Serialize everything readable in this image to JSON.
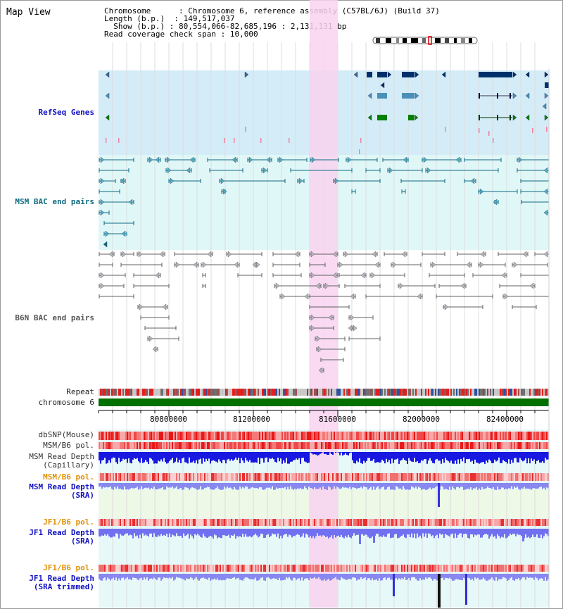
{
  "title": "Map View",
  "info": {
    "chromosome_label": "Chromosome",
    "chromosome_value": "Chromosome 6, reference assembly (C57BL/6J) (Build 37)",
    "length_label": "Length (b.p.)",
    "length_value": "149,517,037",
    "show_label": "Show (b.p.)",
    "show_value": "80,554,066-82,685,196 : 2,131,131 bp",
    "span_label": "Read coverage check span",
    "span_value": "10,000"
  },
  "tracks": {
    "refseq": "RefSeq Genes",
    "msm_bac": "MSM BAC end pairs",
    "b6n_bac": "B6N BAC end pairs",
    "repeat": "Repeat",
    "chromosome": "chromosome 6",
    "dbsnp": "dbSNP(Mouse)",
    "msm_pol": "MSM/B6 pol.",
    "msm_depth_cap_1": "MSM Read Depth",
    "msm_depth_cap_2": "(Capillary)",
    "msm_pol2": "MSM/B6 pol.",
    "msm_depth_sra_1": "MSM Read Depth",
    "msm_depth_sra_2": "(SRA)",
    "jf1_pol": "JF1/B6 pol.",
    "jf1_depth_1": "JF1 Read Depth",
    "jf1_depth_2": "(SRA)",
    "jf1_pol2": "JF1/B6 pol.",
    "jf1_trim_1": "JF1 Read Depth",
    "jf1_trim_2": "(SRA trimmed)"
  },
  "axis": {
    "ticks": [
      "80800000",
      "81200000",
      "81600000",
      "82000000",
      "82400000"
    ]
  },
  "colors": {
    "refseq_bg": "#d4ecf8",
    "msm_bg": "#e0f7f7",
    "highlight": "#f8d4f0",
    "gene_dark": "#00306a",
    "gene_mid": "#4a90b8",
    "gene_green": "#008000",
    "chrom": "#007000"
  }
}
